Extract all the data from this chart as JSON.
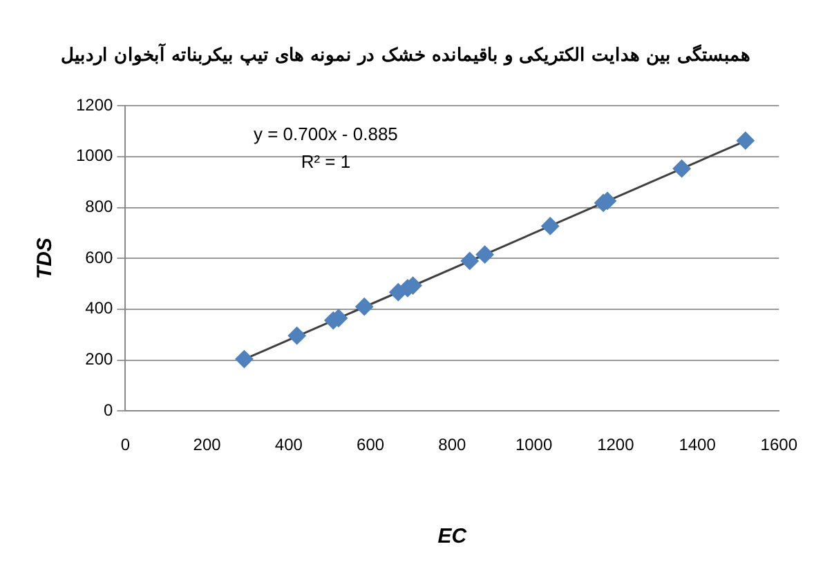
{
  "chart_data": {
    "type": "scatter",
    "title": "همبستگی بین هدایت الکتریکی و باقیمانده خشک در نمونه های تیپ بیکربناته آبخوان اردبیل",
    "xlabel": "EC",
    "ylabel": "TDS",
    "series": [
      {
        "type": "scatter",
        "color": "#4f81bd",
        "marker": "diamond",
        "x": [
          291,
          420,
          509,
          522,
          585,
          668,
          691,
          704,
          843,
          880,
          1040,
          1170,
          1180,
          1362,
          1518
        ],
        "values": [
          204,
          296,
          356,
          365,
          410,
          467,
          483,
          493,
          590,
          615,
          727,
          818,
          826,
          953,
          1063
        ]
      },
      {
        "type": "line",
        "color": "#404040",
        "marker": "none",
        "x": [
          291,
          1518
        ],
        "values": [
          203,
          1062
        ]
      }
    ],
    "annotations": [
      "y = 0.700x - 0.885",
      "R² = 1"
    ],
    "xlim": [
      0,
      1600
    ],
    "xticks": [
      0,
      200,
      400,
      600,
      800,
      1000,
      1200,
      1400,
      1600
    ],
    "ylim": [
      0,
      1200
    ],
    "yticks": [
      0,
      200,
      400,
      600,
      800,
      1000,
      1200
    ],
    "grid": "y",
    "legend": false
  }
}
